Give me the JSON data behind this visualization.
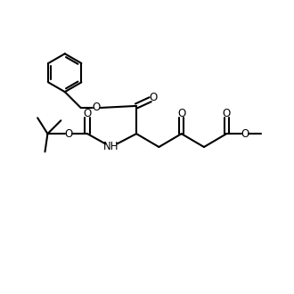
{
  "background": "#ffffff",
  "line_color": "#000000",
  "line_width": 1.5,
  "font_size": 8.5,
  "figsize": [
    3.3,
    3.3
  ],
  "dpi": 100,
  "xlim": [
    0,
    11
  ],
  "ylim": [
    0,
    10
  ]
}
